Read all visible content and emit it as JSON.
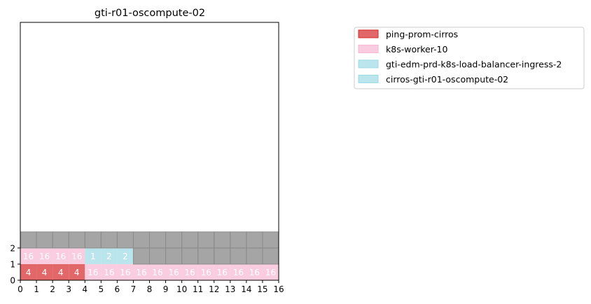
{
  "chart_data": {
    "type": "heatmap",
    "title": "gti-r01-oscompute-02",
    "xlabel": "",
    "ylabel": "",
    "xlim": [
      0,
      16
    ],
    "ylim": [
      0,
      16
    ],
    "x_ticks": [
      "0",
      "1",
      "2",
      "3",
      "4",
      "5",
      "6",
      "7",
      "8",
      "9",
      "10",
      "11",
      "12",
      "13",
      "14",
      "15",
      "16"
    ],
    "y_ticks": [
      "0",
      "1",
      "2"
    ],
    "legend_position": "upper-right-outside",
    "series": [
      {
        "name": "ping-prom-cirros",
        "color": "#d62728"
      },
      {
        "name": "k8s-worker-10",
        "color": "#f7b6d2"
      },
      {
        "name": "gti-edm-prd-k8s-load-balancer-ingress-2",
        "color": "#9edae5"
      },
      {
        "name": "cirros-gti-r01-oscompute-02",
        "color": "#9edae5"
      }
    ],
    "empty_color": "#7f7f7f",
    "rows": [
      [
        {
          "x": 0,
          "series": 0,
          "label": "4"
        },
        {
          "x": 1,
          "series": 0,
          "label": "4"
        },
        {
          "x": 2,
          "series": 0,
          "label": "4"
        },
        {
          "x": 3,
          "series": 0,
          "label": "4"
        },
        {
          "x": 4,
          "series": 1,
          "label": "16"
        },
        {
          "x": 5,
          "series": 1,
          "label": "16"
        },
        {
          "x": 6,
          "series": 1,
          "label": "16"
        },
        {
          "x": 7,
          "series": 1,
          "label": "16"
        },
        {
          "x": 8,
          "series": 1,
          "label": "16"
        },
        {
          "x": 9,
          "series": 1,
          "label": "16"
        },
        {
          "x": 10,
          "series": 1,
          "label": "16"
        },
        {
          "x": 11,
          "series": 1,
          "label": "16"
        },
        {
          "x": 12,
          "series": 1,
          "label": "16"
        },
        {
          "x": 13,
          "series": 1,
          "label": "16"
        },
        {
          "x": 14,
          "series": 1,
          "label": "16"
        },
        {
          "x": 15,
          "series": 1,
          "label": "16"
        }
      ],
      [
        {
          "x": 0,
          "series": 1,
          "label": "16"
        },
        {
          "x": 1,
          "series": 1,
          "label": "16"
        },
        {
          "x": 2,
          "series": 1,
          "label": "16"
        },
        {
          "x": 3,
          "series": 1,
          "label": "16"
        },
        {
          "x": 4,
          "series": 2,
          "label": "1"
        },
        {
          "x": 5,
          "series": 2,
          "label": "2"
        },
        {
          "x": 6,
          "series": 3,
          "label": "2"
        },
        {
          "x": 7,
          "series": null,
          "label": ""
        },
        {
          "x": 8,
          "series": null,
          "label": ""
        },
        {
          "x": 9,
          "series": null,
          "label": ""
        },
        {
          "x": 10,
          "series": null,
          "label": ""
        },
        {
          "x": 11,
          "series": null,
          "label": ""
        },
        {
          "x": 12,
          "series": null,
          "label": ""
        },
        {
          "x": 13,
          "series": null,
          "label": ""
        },
        {
          "x": 14,
          "series": null,
          "label": ""
        },
        {
          "x": 15,
          "series": null,
          "label": ""
        }
      ],
      [
        {
          "x": 0,
          "series": null,
          "label": ""
        },
        {
          "x": 1,
          "series": null,
          "label": ""
        },
        {
          "x": 2,
          "series": null,
          "label": ""
        },
        {
          "x": 3,
          "series": null,
          "label": ""
        },
        {
          "x": 4,
          "series": null,
          "label": ""
        },
        {
          "x": 5,
          "series": null,
          "label": ""
        },
        {
          "x": 6,
          "series": null,
          "label": ""
        },
        {
          "x": 7,
          "series": null,
          "label": ""
        },
        {
          "x": 8,
          "series": null,
          "label": ""
        },
        {
          "x": 9,
          "series": null,
          "label": ""
        },
        {
          "x": 10,
          "series": null,
          "label": ""
        },
        {
          "x": 11,
          "series": null,
          "label": ""
        },
        {
          "x": 12,
          "series": null,
          "label": ""
        },
        {
          "x": 13,
          "series": null,
          "label": ""
        },
        {
          "x": 14,
          "series": null,
          "label": ""
        },
        {
          "x": 15,
          "series": null,
          "label": ""
        }
      ]
    ]
  }
}
